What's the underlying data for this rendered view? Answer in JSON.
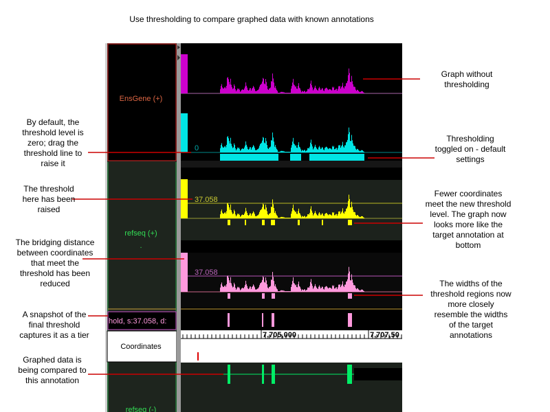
{
  "title": "Use thresholding to compare graphed data with known annotations",
  "tracks": {
    "ensgene_label": "EnsGene (+)",
    "refseq_plus_label": "refseq (+)",
    "refseq_minus_label": "refseq (-)",
    "coordinates_label": "Coordinates",
    "snapshot_label": "hold, s:37.058, d:",
    "threshold_zero": "0",
    "threshold_raised": "37.058",
    "threshold_reduced": "37.058",
    "dot": "."
  },
  "ruler": {
    "tick_1": "7,705,000",
    "tick_2": "7,707,50"
  },
  "annotations": {
    "graph_without": "Graph without thresholding",
    "toggled_on": "Thresholding toggled on - default settings",
    "default_zero": "By default, the threshold level is zero; drag the threshold line to raise it",
    "raised": "The threshold here has been raised",
    "fewer_coords": "Fewer coordinates meet the new threshold level.  The graph now looks more like the target annotation at bottom",
    "bridging": "The bridging distance between coordinates that meet the threshold has been reduced",
    "widths": "The widths of the threshold regions now more closely resemble the widths of the target annotations",
    "snapshot": "A snapshot of the final threshold captures it as a tier",
    "compared": "Graphed data is being compared to this annotation"
  },
  "colors": {
    "ensgene_graph": "#cc00cc",
    "cyan_graph": "#00e5e5",
    "yellow_graph": "#ffff00",
    "pink_graph": "#ff99dd",
    "annotation_green": "#00ee66",
    "pointer_red": "#cc0000"
  }
}
